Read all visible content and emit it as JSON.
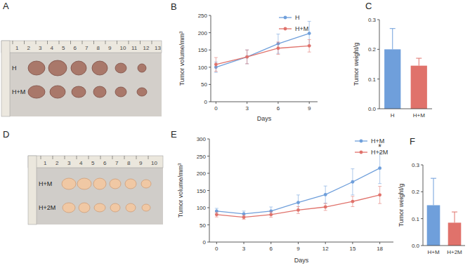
{
  "photos": [
    {
      "panel": "A",
      "ruler_labels": [
        "1",
        "2",
        "3",
        "4",
        "5",
        "6",
        "7",
        "8",
        "9",
        "10",
        "11",
        "12",
        "13"
      ],
      "row_labels": [
        "H",
        "H+M"
      ]
    },
    {
      "panel": "D",
      "ruler_labels": [
        "1",
        "2",
        "3",
        "4",
        "5",
        "6",
        "7",
        "8",
        "9",
        "10"
      ],
      "row_labels": [
        "H+M",
        "H+2M"
      ]
    }
  ],
  "chart_data": [
    {
      "title": "B",
      "type": "line",
      "x_label": "Days",
      "y_label": "Tumor volume/mm³",
      "x": [
        0,
        3,
        6,
        9
      ],
      "xlim": [
        -0.5,
        9.8
      ],
      "xticks": [
        0,
        3,
        6,
        9
      ],
      "ylim": [
        0,
        250
      ],
      "yticks": [
        0,
        50,
        100,
        150,
        200,
        250
      ],
      "legend": "upper right",
      "marker": "circle",
      "series": [
        {
          "name": "H",
          "color": "#6f9fdb",
          "values": [
            100,
            130,
            168,
            198
          ],
          "errors": [
            15,
            20,
            28,
            35
          ]
        },
        {
          "name": "H+M",
          "color": "#e0726b",
          "values": [
            108,
            130,
            155,
            162
          ],
          "errors": [
            20,
            20,
            18,
            18
          ]
        }
      ]
    },
    {
      "title": "C",
      "type": "bar",
      "y_label": "Tumor weight/g",
      "categories": [
        "H",
        "H+M"
      ],
      "ylim": [
        0,
        0.3
      ],
      "yticks": [
        {
          "value": 0,
          "label": "0.0"
        },
        0.1,
        0.2,
        0.3
      ],
      "colors": [
        "#6f9fdb",
        "#e0726b"
      ],
      "values": [
        0.2,
        0.145
      ],
      "errors": [
        0.07,
        0.025
      ]
    },
    {
      "title": "E",
      "type": "line",
      "x_label": "Days",
      "y_label": "Tumor volume/mm³",
      "x": [
        0,
        3,
        6,
        9,
        12,
        15,
        18
      ],
      "xlim": [
        -0.8,
        19.5
      ],
      "xticks": [
        0,
        3,
        6,
        9,
        12,
        15,
        18
      ],
      "ylim": [
        0,
        300
      ],
      "yticks": [
        0,
        50,
        100,
        150,
        200,
        250,
        300
      ],
      "legend": "upper right",
      "marker": "circle",
      "annotations": [
        {
          "text": "*",
          "x": 18,
          "y": 268
        }
      ],
      "series": [
        {
          "name": "H+M",
          "color": "#6f9fdb",
          "values": [
            90,
            82,
            90,
            115,
            138,
            175,
            215
          ],
          "errors": [
            8,
            8,
            12,
            22,
            25,
            38,
            45
          ]
        },
        {
          "name": "H+2M",
          "color": "#e0726b",
          "values": [
            80,
            72,
            80,
            93,
            102,
            118,
            137
          ],
          "errors": [
            7,
            6,
            8,
            10,
            10,
            15,
            25
          ]
        }
      ]
    },
    {
      "title": "F",
      "type": "bar",
      "y_label": "Tumor weight/g",
      "categories": [
        "H+M",
        "H+2M"
      ],
      "ylim": [
        0,
        0.3
      ],
      "yticks": [
        {
          "value": 0,
          "label": "0.0"
        },
        0.1,
        0.2,
        0.3
      ],
      "colors": [
        "#6f9fdb",
        "#e0726b"
      ],
      "values": [
        0.15,
        0.085
      ],
      "errors": [
        0.1,
        0.04
      ]
    }
  ]
}
